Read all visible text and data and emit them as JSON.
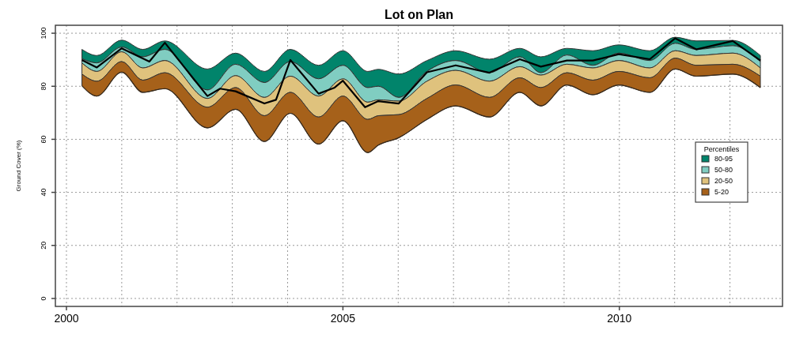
{
  "chart_data": {
    "type": "area",
    "title": "Lot on Plan",
    "ylabel": "Ground Cover (%)",
    "legend_title": "Percentiles",
    "legend": "right",
    "grid": true,
    "xlim": [
      1999.8,
      2012.95
    ],
    "xticks": [
      2000,
      {
        "value": 2001,
        "label": null
      },
      {
        "value": 2002,
        "label": null
      },
      {
        "value": 2003,
        "label": null
      },
      {
        "value": 2004,
        "label": null
      },
      2005,
      {
        "value": 2006,
        "label": null
      },
      {
        "value": 2007,
        "label": null
      },
      {
        "value": 2008,
        "label": null
      },
      {
        "value": 2009,
        "label": null
      },
      2010,
      {
        "value": 2011,
        "label": null
      },
      {
        "value": 2012,
        "label": null
      }
    ],
    "ylim": [
      -3,
      103
    ],
    "yticks": [
      0,
      20,
      40,
      60,
      80,
      100
    ],
    "x": [
      2000.28,
      2000.55,
      2001.0,
      2001.38,
      2001.78,
      2002.55,
      2003.06,
      2003.58,
      2004.05,
      2004.56,
      2005.0,
      2005.45,
      2005.64,
      2006.01,
      2006.52,
      2007.04,
      2007.65,
      2008.2,
      2008.58,
      2009.05,
      2009.52,
      2009.99,
      2010.55,
      2011.01,
      2011.39,
      2012.05,
      2012.55
    ],
    "series": [
      {
        "name": "80-95",
        "color": "#01846b",
        "values": [
          93.9,
          91.6,
          97.4,
          93.9,
          97.1,
          86.5,
          92.5,
          85.6,
          93.9,
          87.9,
          93.4,
          85.6,
          86.4,
          84.6,
          89.7,
          93.4,
          90.2,
          94.3,
          91.1,
          94.3,
          93.4,
          95.6,
          93.4,
          98.5,
          97.1,
          97.3,
          91.6
        ]
      },
      {
        "name": "50-80",
        "color": "#80cdc1",
        "values": [
          90.4,
          88.8,
          94.8,
          91.1,
          93.9,
          78.6,
          88.3,
          81.4,
          89.3,
          82.8,
          87.9,
          79.5,
          80,
          75.8,
          85.6,
          89.7,
          85.1,
          91.1,
          85.1,
          91.8,
          87.9,
          92.5,
          89.7,
          96.2,
          93.9,
          95.3,
          89.3
        ]
      },
      {
        "name": "20-50",
        "color": "#dfc27d",
        "values": [
          88.8,
          85.6,
          93,
          86.9,
          89.7,
          75.4,
          84,
          75.8,
          83.8,
          76.3,
          82.8,
          74,
          74.9,
          74.4,
          81.9,
          86,
          81.9,
          87.4,
          84.2,
          88.3,
          86.9,
          89.7,
          86.9,
          93.4,
          91.6,
          92.5,
          86.9
        ]
      },
      {
        "name": "5-20",
        "color": "#a6611a",
        "values": [
          84.6,
          81.9,
          89.3,
          82.3,
          85.1,
          72.1,
          79.5,
          68.9,
          77.7,
          68.4,
          76.3,
          67.5,
          68.9,
          69.3,
          75.4,
          80.5,
          75.8,
          83.2,
          79.5,
          85.1,
          82.3,
          85.6,
          83.2,
          90.6,
          87.9,
          88.3,
          83.8
        ]
      },
      {
        "type": "line",
        "color": "#3a2a1a",
        "values": [
          80.2,
          76.3,
          85.3,
          77.7,
          79.1,
          64.3,
          71.3,
          59.2,
          69.8,
          58.2,
          67,
          55,
          57.8,
          60.6,
          67.5,
          72.6,
          68.4,
          77.7,
          72.6,
          80.5,
          76.8,
          80.5,
          77.7,
          86.5,
          83.8,
          84.6,
          79.5
        ]
      },
      {
        "type": "line",
        "color": "#000000",
        "x": [
          2000.28,
          2000.55,
          2001.0,
          2001.5,
          2001.78,
          2002.55,
          2002.78,
          2003.06,
          2003.58,
          2003.79,
          2004.05,
          2004.56,
          2004.85,
          2005.0,
          2005.4,
          2005.64,
          2006.01,
          2006.52,
          2007.04,
          2007.65,
          2008.2,
          2008.58,
          2009.05,
          2009.52,
          2009.99,
          2010.55,
          2011.01,
          2011.39,
          2012.05,
          2012.55
        ],
        "values": [
          89.9,
          87.1,
          94.3,
          89.3,
          96.4,
          76.3,
          79.1,
          78.1,
          73.5,
          74.9,
          89.9,
          77.2,
          79.5,
          82.1,
          72.1,
          74.4,
          73.5,
          85.3,
          87.9,
          85.1,
          90.2,
          87.4,
          89.7,
          89.7,
          92.1,
          90.2,
          98.1,
          93.9,
          97.1,
          89.7
        ]
      }
    ]
  }
}
